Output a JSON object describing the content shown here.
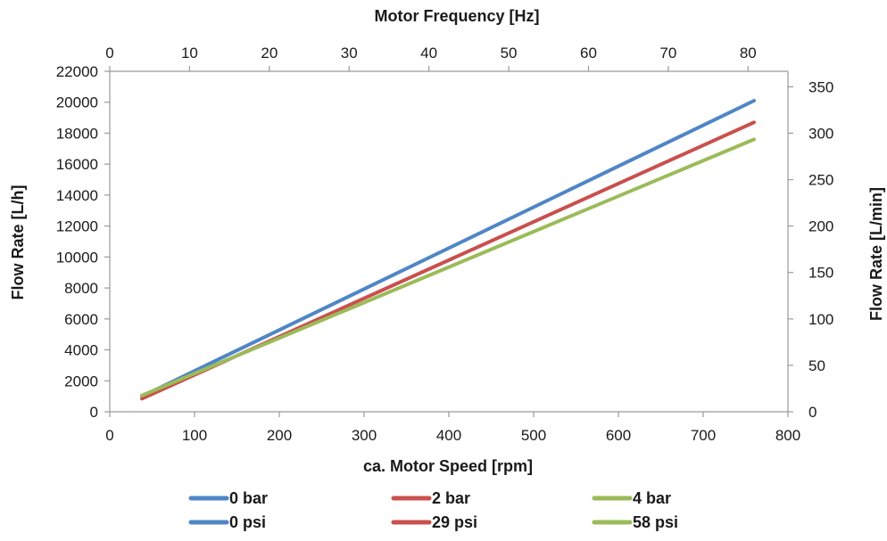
{
  "chart_data": {
    "type": "line",
    "title": "",
    "xlabel": "ca. Motor Speed [rpm]",
    "ylabel": "Flow Rate [L/h]",
    "x2label": "Motor Frequency [Hz]",
    "y2label": "Flow Rate [L/min]",
    "xlim": [
      0,
      800
    ],
    "ylim": [
      0,
      22000
    ],
    "x2lim": [
      0,
      85
    ],
    "y2lim": [
      0,
      366.67
    ],
    "xticks": [
      "0",
      "100",
      "200",
      "300",
      "400",
      "500",
      "600",
      "700",
      "800"
    ],
    "yticks": [
      "0",
      "2000",
      "4000",
      "6000",
      "8000",
      "10000",
      "12000",
      "14000",
      "16000",
      "18000",
      "20000",
      "22000"
    ],
    "x2ticks": [
      "0",
      "10",
      "20",
      "30",
      "40",
      "50",
      "60",
      "70",
      "80"
    ],
    "y2ticks": [
      "0",
      "50",
      "100",
      "150",
      "200",
      "250",
      "300",
      "350"
    ],
    "grid": false,
    "legend_position": "bottom",
    "series": [
      {
        "name": "0 bar",
        "color": "#4f86c6",
        "x": [
          38,
          760
        ],
        "y": [
          1000,
          20100
        ]
      },
      {
        "name": "2 bar",
        "color": "#c9504d",
        "x": [
          38,
          760
        ],
        "y": [
          850,
          18700
        ]
      },
      {
        "name": "4 bar",
        "color": "#9bbb59",
        "x": [
          38,
          760
        ],
        "y": [
          1050,
          17600
        ]
      }
    ],
    "legend": [
      {
        "label": "0 bar",
        "color": "#4f86c6"
      },
      {
        "label": "2 bar",
        "color": "#c9504d"
      },
      {
        "label": "4 bar",
        "color": "#9bbb59"
      },
      {
        "label": "0 psi",
        "color": "#4f86c6"
      },
      {
        "label": "29 psi",
        "color": "#c9504d"
      },
      {
        "label": "58 psi",
        "color": "#9bbb59"
      }
    ]
  }
}
